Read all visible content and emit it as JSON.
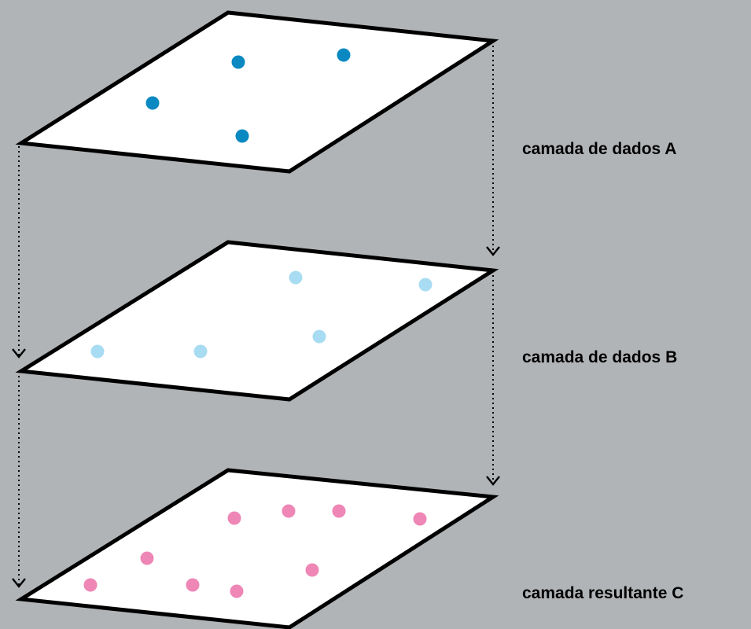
{
  "layers": [
    {
      "label": "camada de dados A",
      "point_color": "#0a88c2",
      "point_count": 4
    },
    {
      "label": "camada de dados B",
      "point_color": "#a8dcf2",
      "point_count": 5
    },
    {
      "label": "camada resultante C",
      "point_color": "#ee86b6",
      "point_count": 9
    }
  ],
  "colors": {
    "background": "#b1b4b6",
    "plane_fill": "#ffffff",
    "plane_stroke": "#000000"
  }
}
